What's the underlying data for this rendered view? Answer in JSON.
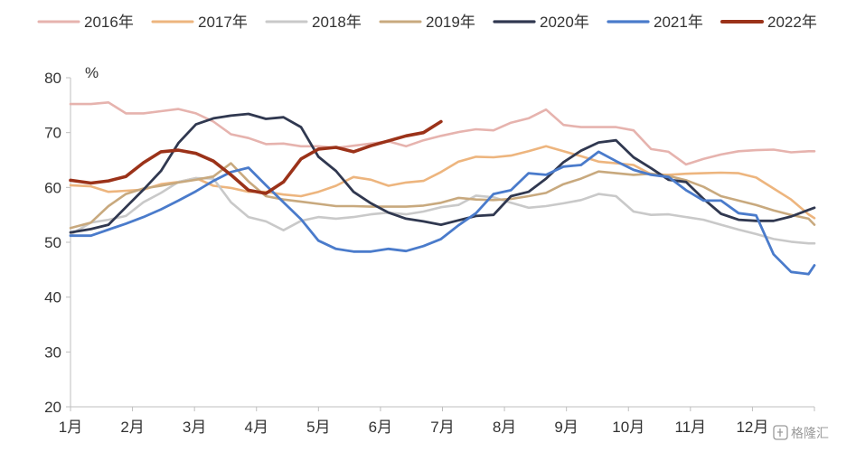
{
  "chart_data": {
    "type": "line",
    "title": "",
    "xlabel": "",
    "ylabel": "%",
    "ylim": [
      20,
      80
    ],
    "yticks": [
      "80",
      "70",
      "60",
      "50",
      "40",
      "30",
      "20"
    ],
    "xticks": [
      "1月",
      "2月",
      "3月",
      "4月",
      "5月",
      "6月",
      "7月",
      "8月",
      "9月",
      "10月",
      "11月",
      "12月"
    ],
    "x_unit": "week",
    "xlim": [
      1,
      52
    ],
    "legend_position": "top",
    "grid": false,
    "series": [
      {
        "name": "2016年",
        "color": "#E6B3AE",
        "width": 2.6,
        "x": [
          1,
          2.4,
          3.6,
          4.8,
          6,
          7.2,
          8.4,
          9.6,
          10.8,
          12,
          13.2,
          14.4,
          15.6,
          16.8,
          18,
          19.2,
          20.4,
          21.6,
          22.8,
          24,
          25.2,
          26.4,
          27.6,
          28.8,
          30,
          31.2,
          32.4,
          33.6,
          34.8,
          36,
          37.2,
          38.4,
          39.6,
          40.8,
          42,
          43.2,
          44.4,
          45.6,
          46.8,
          48,
          49.2,
          50.4,
          51.6,
          52
        ],
        "values": [
          75.2,
          75.2,
          75.5,
          73.5,
          73.5,
          73.9,
          74.3,
          73.5,
          72,
          69.7,
          69,
          67.9,
          68,
          67.5,
          67.5,
          67.2,
          67.6,
          68,
          68.4,
          67.5,
          68.6,
          69.4,
          70.1,
          70.6,
          70.4,
          71.8,
          72.6,
          74.2,
          71.4,
          71,
          71,
          71,
          70.4,
          67,
          66.5,
          64.2,
          65.2,
          66,
          66.6,
          66.8,
          66.9,
          66.4,
          66.6,
          66.6
        ]
      },
      {
        "name": "2017年",
        "color": "#EDB57E",
        "width": 2.6,
        "x": [
          1,
          2.4,
          3.6,
          4.8,
          6,
          7.2,
          8.4,
          9.6,
          10.8,
          12,
          13.2,
          14.4,
          15.6,
          16.8,
          18,
          19.2,
          20.4,
          21.6,
          22.8,
          24,
          25.2,
          26.4,
          27.6,
          28.8,
          30,
          31.2,
          32.4,
          33.6,
          34.8,
          36,
          37.2,
          38.4,
          39.6,
          40.8,
          42,
          43.2,
          44.4,
          45.6,
          46.8,
          48,
          49.2,
          50.4,
          51.6,
          52
        ],
        "values": [
          60.4,
          60.2,
          59.2,
          59.4,
          59.6,
          60.6,
          61,
          61.7,
          60.3,
          59.9,
          59.2,
          59.2,
          58.7,
          58.4,
          59.2,
          60.3,
          61.9,
          61.4,
          60.3,
          60.9,
          61.2,
          62.8,
          64.7,
          65.6,
          65.5,
          65.8,
          66.6,
          67.5,
          66.6,
          65.7,
          64.7,
          64.4,
          64.1,
          62.4,
          62.3,
          62.5,
          62.6,
          62.7,
          62.6,
          61.8,
          59.8,
          57.8,
          55.1,
          54.4
        ]
      },
      {
        "name": "2018年",
        "color": "#C9C9C9",
        "width": 2.6,
        "x": [
          1,
          2.4,
          3.6,
          4.8,
          6,
          7.2,
          8.4,
          9.6,
          10.8,
          12,
          13.2,
          14.4,
          15.6,
          16.8,
          18,
          19.2,
          20.4,
          21.6,
          22.8,
          24,
          25.2,
          26.4,
          27.6,
          28.8,
          30,
          31.2,
          32.4,
          33.6,
          34.8,
          36,
          37.2,
          38.4,
          39.6,
          40.8,
          42,
          43.2,
          44.4,
          45.6,
          46.8,
          48,
          49.2,
          50.4,
          51.6,
          52
        ],
        "values": [
          51.4,
          53.6,
          54.1,
          54.8,
          57.3,
          59,
          61,
          61.7,
          61.6,
          57.3,
          54.6,
          53.8,
          52.2,
          53.9,
          54.6,
          54.3,
          54.6,
          55.1,
          55.4,
          55.1,
          55.6,
          56.4,
          56.8,
          58.5,
          58.2,
          57.2,
          56.3,
          56.6,
          57.1,
          57.7,
          58.8,
          58.4,
          55.6,
          55,
          55.1,
          54.6,
          54.1,
          53.2,
          52.3,
          51.5,
          50.6,
          50.1,
          49.8,
          49.8
        ]
      },
      {
        "name": "2019年",
        "color": "#C8A97E",
        "width": 2.6,
        "x": [
          1,
          2.4,
          3.6,
          4.8,
          6,
          7.2,
          8.4,
          9.6,
          10.8,
          12,
          13.2,
          14.4,
          15.6,
          16.8,
          18,
          19.2,
          20.4,
          21.6,
          22.8,
          24,
          25.2,
          26.4,
          27.6,
          28.8,
          30,
          31.2,
          32.4,
          33.6,
          34.8,
          36,
          37.2,
          38.4,
          39.6,
          40.8,
          42,
          43.2,
          44.4,
          45.6,
          46.8,
          48,
          49.2,
          50.4,
          51.6,
          52
        ],
        "values": [
          52.6,
          53.6,
          56.6,
          58.8,
          59.8,
          60.3,
          60.9,
          61.4,
          62,
          64.4,
          61.1,
          58.4,
          57.8,
          57.4,
          57,
          56.6,
          56.6,
          56.5,
          56.5,
          56.5,
          56.7,
          57.2,
          58.1,
          57.8,
          57.7,
          57.9,
          58.4,
          59,
          60.6,
          61.6,
          62.9,
          62.6,
          62.3,
          62.5,
          62.1,
          61.3,
          60.1,
          58.4,
          57.6,
          56.8,
          55.8,
          55,
          54.3,
          53.2
        ]
      },
      {
        "name": "2020年",
        "color": "#303850",
        "width": 2.8,
        "x": [
          1,
          2.4,
          3.6,
          4.8,
          6,
          7.2,
          8.4,
          9.6,
          10.8,
          12,
          13.2,
          14.4,
          15.6,
          16.8,
          18,
          19.2,
          20.4,
          21.6,
          22.8,
          24,
          25.2,
          26.4,
          27.6,
          28.8,
          30,
          31.2,
          32.4,
          33.6,
          34.8,
          36,
          37.2,
          38.4,
          39.6,
          40.8,
          42,
          43.2,
          44.4,
          45.6,
          46.8,
          48,
          49.2,
          50.4,
          51.6,
          52
        ],
        "values": [
          51.8,
          52.4,
          53.2,
          56.4,
          59.6,
          63,
          68.1,
          71.5,
          72.6,
          73.1,
          73.4,
          72.5,
          72.8,
          71,
          65.6,
          63,
          59.2,
          57.1,
          55.4,
          54.3,
          53.8,
          53.2,
          54,
          54.8,
          55,
          58.4,
          59.2,
          61.6,
          64.6,
          66.7,
          68.2,
          68.6,
          65.5,
          63.5,
          61.4,
          61,
          57.9,
          55.2,
          54.1,
          53.9,
          53.9,
          54.7,
          55.9,
          56.3
        ]
      },
      {
        "name": "2021年",
        "color": "#4A7BCB",
        "width": 2.8,
        "x": [
          1,
          2.4,
          3.6,
          4.8,
          6,
          7.2,
          8.4,
          9.6,
          10.8,
          12,
          13.2,
          14.4,
          15.6,
          16.8,
          18,
          19.2,
          20.4,
          21.6,
          22.8,
          24,
          25.2,
          26.4,
          27.6,
          28.8,
          30,
          31.2,
          32.4,
          33.6,
          34.8,
          36,
          37.2,
          38.4,
          39.6,
          40.8,
          42,
          43.2,
          44.4,
          45.6,
          46.8,
          48,
          49.2,
          50.4,
          51.6,
          52
        ],
        "values": [
          51.2,
          51.2,
          52.3,
          53.4,
          54.6,
          56,
          57.6,
          59.3,
          61.2,
          62.8,
          63.6,
          60.4,
          57.3,
          54.2,
          50.3,
          48.8,
          48.3,
          48.3,
          48.8,
          48.4,
          49.3,
          50.6,
          53.1,
          55.3,
          58.8,
          59.5,
          62.6,
          62.3,
          63.8,
          64.1,
          66.5,
          64.8,
          63.2,
          62.3,
          61.9,
          59.5,
          57.6,
          57.6,
          55.3,
          54.9,
          47.8,
          44.6,
          44.2,
          45.8
        ]
      },
      {
        "name": "2022年",
        "color": "#9B3219",
        "width": 3.6,
        "x": [
          1,
          2.4,
          3.6,
          4.8,
          6,
          7.2,
          8.4,
          9.6,
          10.8,
          12,
          13.2,
          14.4,
          15.6,
          16.8,
          18,
          19.2,
          20.4,
          21.6,
          22.8,
          24,
          25.2,
          26.4
        ],
        "values": [
          61.3,
          60.8,
          61.2,
          62,
          64.5,
          66.5,
          66.8,
          66.2,
          64.8,
          62.3,
          59.5,
          58.9,
          61,
          65.2,
          67,
          67.3,
          66.5,
          67.6,
          68.5,
          69.4,
          70,
          72
        ]
      }
    ],
    "watermark": "格隆汇"
  }
}
